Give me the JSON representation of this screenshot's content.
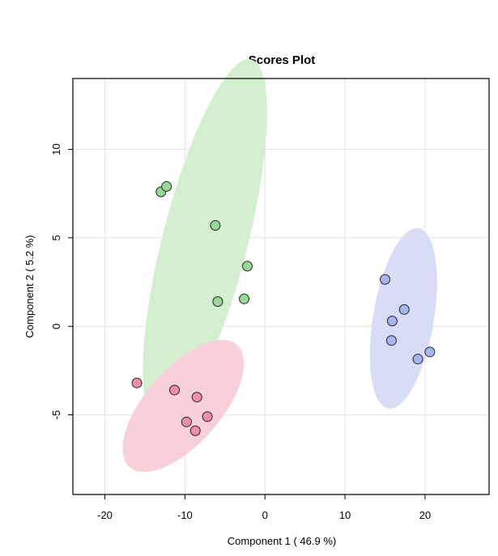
{
  "chart_data": {
    "type": "scatter",
    "title": "Scores Plot",
    "xlabel": "Component 1 ( 46.9 %)",
    "ylabel": "Component 2 ( 5.2 %)",
    "xlim": [
      -24,
      28
    ],
    "ylim": [
      -9.5,
      14
    ],
    "xticks": [
      -20,
      -10,
      0,
      10,
      20
    ],
    "yticks": [
      -5,
      0,
      5,
      10
    ],
    "grid": true,
    "legend": "none",
    "colors": {
      "green_fill": "#d4efd0",
      "green_point": "#97d896",
      "red_fill": "#f8d0da",
      "red_point": "#ee8fa6",
      "blue_fill": "#d8dcf5",
      "blue_point": "#a6b6ec",
      "grid": "#e3e3e3",
      "point_edge": "#222222"
    },
    "series": [
      {
        "color_key": "green",
        "points": [
          {
            "x": -13.0,
            "y": 7.6
          },
          {
            "x": -12.3,
            "y": 7.9
          },
          {
            "x": -6.2,
            "y": 5.7
          },
          {
            "x": -2.2,
            "y": 3.4
          },
          {
            "x": -5.9,
            "y": 1.4
          },
          {
            "x": -2.6,
            "y": 1.55
          }
        ],
        "ellipse": {
          "cx": -7.5,
          "cy": 4.8,
          "major": 12.0,
          "minor": 4.7,
          "angle_deg": 56
        }
      },
      {
        "color_key": "red",
        "points": [
          {
            "x": -16.0,
            "y": -3.2
          },
          {
            "x": -11.3,
            "y": -3.6
          },
          {
            "x": -8.5,
            "y": -4.0
          },
          {
            "x": -7.2,
            "y": -5.1
          },
          {
            "x": -9.8,
            "y": -5.4
          },
          {
            "x": -8.7,
            "y": -5.9
          }
        ],
        "ellipse": {
          "cx": -10.2,
          "cy": -4.5,
          "major": 8.0,
          "minor": 2.7,
          "angle_deg": 20
        }
      },
      {
        "color_key": "blue",
        "points": [
          {
            "x": 15.0,
            "y": 2.65
          },
          {
            "x": 17.4,
            "y": 0.95
          },
          {
            "x": 15.9,
            "y": 0.3
          },
          {
            "x": 15.8,
            "y": -0.8
          },
          {
            "x": 19.1,
            "y": -1.85
          },
          {
            "x": 20.6,
            "y": -1.45
          }
        ],
        "ellipse": {
          "cx": 17.3,
          "cy": 0.45,
          "major": 5.6,
          "minor": 3.5,
          "angle_deg": 58
        }
      }
    ]
  }
}
